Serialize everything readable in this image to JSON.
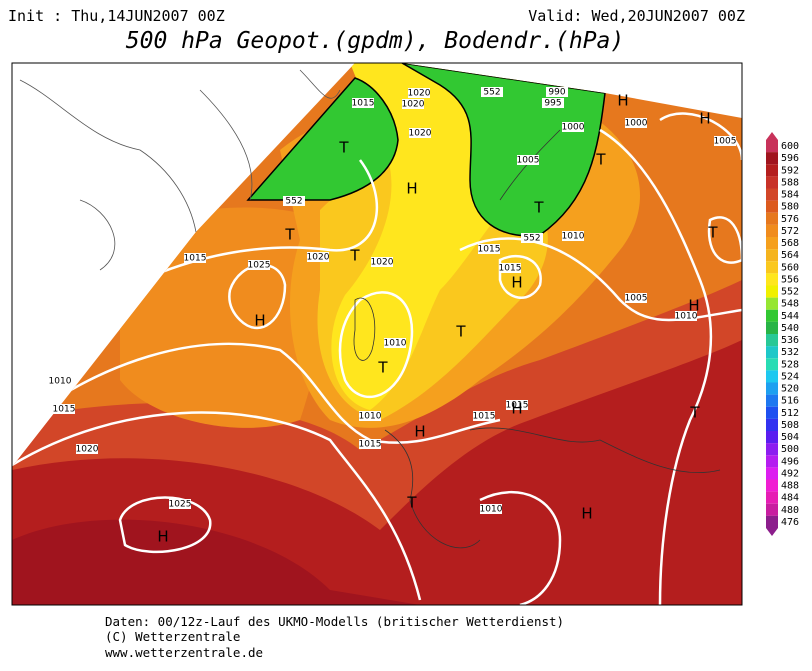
{
  "header": {
    "init": "Init : Thu,14JUN2007 00Z",
    "valid": "Valid: Wed,20JUN2007 00Z",
    "title": "500 hPa Geopot.(gpdm), Bodendr.(hPa)"
  },
  "colorbar": {
    "labels": [
      "600",
      "596",
      "592",
      "588",
      "584",
      "580",
      "576",
      "572",
      "568",
      "564",
      "560",
      "556",
      "552",
      "548",
      "544",
      "540",
      "536",
      "532",
      "528",
      "524",
      "520",
      "516",
      "512",
      "508",
      "504",
      "500",
      "496",
      "492",
      "488",
      "484",
      "480",
      "476"
    ],
    "colors": [
      "#c8325a",
      "#a0141e",
      "#b41e1e",
      "#c83228",
      "#d24628",
      "#dc5a1e",
      "#e6781e",
      "#f08c1e",
      "#f5a01e",
      "#f5b41e",
      "#fac81e",
      "#ffe61e",
      "#f0f000",
      "#96e632",
      "#32c832",
      "#28b446",
      "#28c896",
      "#1ec8c8",
      "#28dcb4",
      "#1ec8f0",
      "#1ea0f0",
      "#1e78f0",
      "#1e50f0",
      "#3232f0",
      "#5a1ef0",
      "#8c1ef0",
      "#b41ef0",
      "#dc1ef0",
      "#f01ed2",
      "#e61eb4",
      "#c81ea0",
      "#8c1e8c"
    ]
  },
  "map": {
    "labels": [
      "1015",
      "1020",
      "1020",
      "1020",
      "990",
      "995",
      "1000",
      "1000",
      "1005",
      "1005",
      "1010",
      "1015",
      "1015",
      "1020",
      "1020",
      "1025",
      "1015",
      "1010",
      "1010",
      "1015",
      "1015",
      "1015",
      "1005",
      "1010",
      "1010",
      "1015",
      "1020",
      "1025",
      "1010",
      "552",
      "552",
      "552",
      "H",
      "H",
      "T",
      "H",
      "T",
      "T",
      "T",
      "T",
      "H",
      "H",
      "T",
      "H",
      "T",
      "T",
      "H",
      "H",
      "T",
      "T",
      "H",
      "H"
    ]
  },
  "footer": {
    "line1": "Daten: 00/12z-Lauf des UKMO-Modells (britischer Wetterdienst)",
    "line2": "(C) Wetterzentrale",
    "line3": "www.wetterzentrale.de"
  }
}
